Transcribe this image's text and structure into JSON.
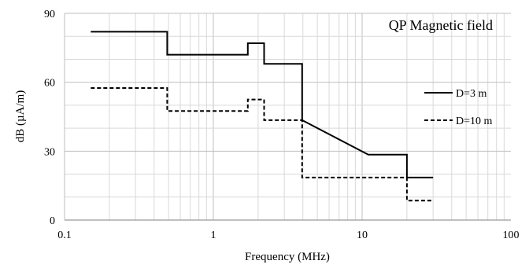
{
  "chart_data": {
    "type": "line",
    "title": "QP Magnetic field",
    "xlabel": "Frequency (MHz)",
    "ylabel": "dB (µA/m)",
    "xscale": "log",
    "xlim": [
      0.1,
      100
    ],
    "ylim": [
      0,
      90
    ],
    "x_ticks": [
      "0.1",
      "1",
      "10",
      "100"
    ],
    "y_ticks": [
      "0",
      "30",
      "60",
      "90"
    ],
    "grid": true,
    "legend_position": "right",
    "series": [
      {
        "name": "D=3 m",
        "style": "solid",
        "color": "#000000",
        "x": [
          0.15,
          0.49,
          0.49,
          1.705,
          1.705,
          2.194,
          2.194,
          3.95,
          3.95,
          11,
          11,
          20,
          20,
          30
        ],
        "y": [
          82,
          82,
          72,
          72,
          77,
          77,
          68,
          68,
          43.5,
          28.5,
          28.5,
          28.5,
          18.5,
          18.5
        ]
      },
      {
        "name": "D=10 m",
        "style": "dashed",
        "color": "#000000",
        "x": [
          0.15,
          0.49,
          0.49,
          1.705,
          1.705,
          2.194,
          2.194,
          3.95,
          3.95,
          20,
          20,
          30
        ],
        "y": [
          57.5,
          57.5,
          47.5,
          47.5,
          52.5,
          52.5,
          43.5,
          43.5,
          18.5,
          18.5,
          8.5,
          8.5
        ]
      }
    ]
  }
}
